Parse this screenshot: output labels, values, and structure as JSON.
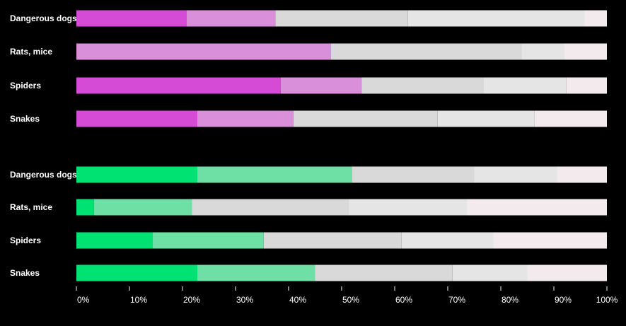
{
  "chart_data": [
    {
      "type": "bar",
      "orientation": "horizontal",
      "stacked": true,
      "categories": [
        "Dangerous dogs",
        "Rats, mice",
        "Spiders",
        "Snakes"
      ],
      "series": [
        {
          "values": [
            20.8,
            0,
            38.5,
            22.8
          ]
        },
        {
          "values": [
            16.7,
            48.0,
            15.3,
            18.1
          ]
        },
        {
          "values": [
            25.0,
            36.0,
            23.0,
            27.2
          ]
        },
        {
          "values": [
            33.3,
            8.0,
            15.5,
            18.2
          ]
        },
        {
          "values": [
            4.2,
            8.0,
            7.7,
            13.7
          ]
        }
      ],
      "colors": [
        "#d64bd6",
        "#d98fd9",
        "#d9d9d9",
        "#e5e5e5",
        "#f3eaee"
      ]
    },
    {
      "type": "bar",
      "orientation": "horizontal",
      "stacked": true,
      "categories": [
        "Dangerous dogs",
        "Rats, mice",
        "Spiders",
        "Snakes"
      ],
      "series": [
        {
          "values": [
            22.8,
            3.3,
            14.4,
            22.8
          ]
        },
        {
          "values": [
            29.1,
            18.5,
            20.9,
            22.2
          ]
        },
        {
          "values": [
            23.1,
            29.6,
            26.0,
            25.9
          ]
        },
        {
          "values": [
            15.6,
            22.2,
            17.3,
            14.1
          ]
        },
        {
          "values": [
            9.4,
            26.4,
            21.4,
            15.0
          ]
        }
      ],
      "colors": [
        "#00e272",
        "#6ee0a6",
        "#d9d9d9",
        "#e5e5e5",
        "#f3eaee"
      ]
    }
  ],
  "x_axis": {
    "range": [
      0,
      100
    ],
    "ticks": [
      "0%",
      "10%",
      "20%",
      "30%",
      "40%",
      "50%",
      "60%",
      "70%",
      "80%",
      "90%",
      "100%"
    ],
    "label_color": "#ffffff",
    "tick_color": "#ffffff"
  },
  "colors": {
    "background": "#000000",
    "label_text": "#ffffff"
  }
}
